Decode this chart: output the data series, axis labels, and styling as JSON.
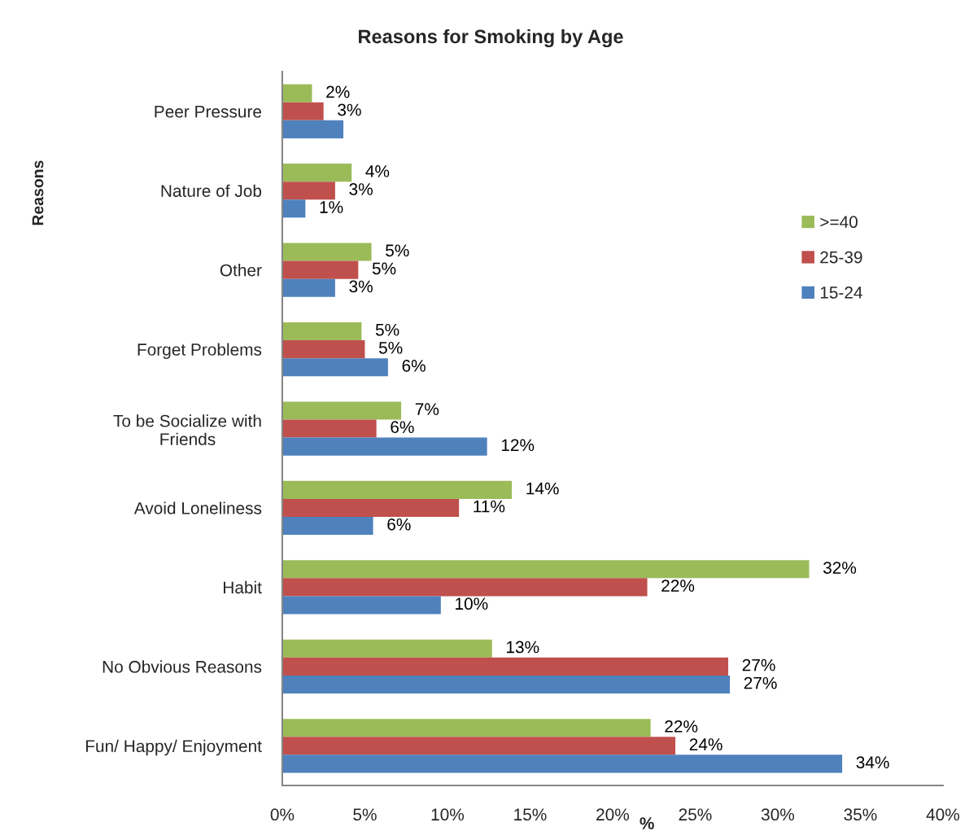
{
  "chart_data": {
    "type": "bar",
    "orientation": "horizontal",
    "title": "Reasons for Smoking by Age",
    "xlabel": "%",
    "ylabel": "Reasons",
    "categories": [
      "Peer Pressure",
      "Nature of Job",
      "Other",
      "Forget Problems",
      "To be Socialize with\nFriends",
      "Avoid Loneliness",
      "Habit",
      "No Obvious Reasons",
      "Fun/ Happy/ Enjoyment"
    ],
    "series": [
      {
        "name": ">=40",
        "color": "#9bbb59",
        "values": [
          1.8,
          4.2,
          5.4,
          4.8,
          7.2,
          13.9,
          31.9,
          12.7,
          22.3
        ],
        "value_labels": [
          "2%",
          "4%",
          "5%",
          "5%",
          "7%",
          "14%",
          "32%",
          "13%",
          "22%"
        ]
      },
      {
        "name": "25-39",
        "color": "#c0504d",
        "values": [
          2.5,
          3.2,
          4.6,
          5.0,
          5.7,
          10.7,
          22.1,
          27.0,
          23.8
        ],
        "value_labels": [
          "3%",
          "3%",
          "5%",
          "5%",
          "6%",
          "11%",
          "22%",
          "27%",
          "24%"
        ]
      },
      {
        "name": "15-24",
        "color": "#4f81bd",
        "values": [
          3.7,
          1.4,
          3.2,
          6.4,
          12.4,
          5.5,
          9.6,
          27.1,
          33.9
        ],
        "value_labels": [
          null,
          "1%",
          "3%",
          "6%",
          "12%",
          "6%",
          "10%",
          "27%",
          "34%"
        ]
      }
    ],
    "xlim": [
      0,
      40
    ],
    "xticks": [
      {
        "value": 0,
        "label": "0%"
      },
      {
        "value": 5,
        "label": "5%"
      },
      {
        "value": 10,
        "label": "10%"
      },
      {
        "value": 15,
        "label": "15%"
      },
      {
        "value": 20,
        "label": "20%"
      },
      {
        "value": 25,
        "label": "25%"
      },
      {
        "value": 30,
        "label": "30%"
      },
      {
        "value": 35,
        "label": "35%"
      },
      {
        "value": 40,
        "label": "40%"
      }
    ],
    "legend": "right"
  }
}
